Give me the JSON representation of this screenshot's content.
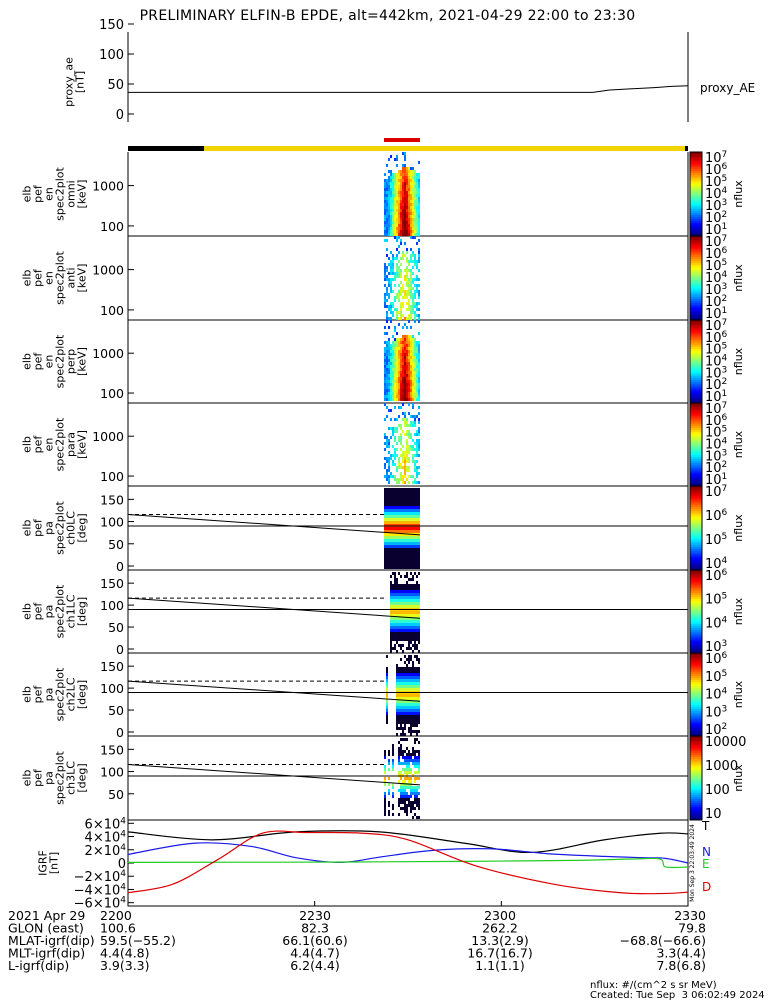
{
  "title": "PRELIMINARY ELFIN-B EPDE, alt=442km, 2021-04-29 22:00 to 23:30",
  "colors": {
    "line": "#000000",
    "black_bar": "#000000",
    "yellow_bar": "#f2d500",
    "red_bar": "#dd0000",
    "T": "#000000",
    "N": "#1a1ae6",
    "E": "#22cc22",
    "D": "#dd0000"
  },
  "chart_data": [
    {
      "type": "line",
      "ylabel_lines": [
        "proxy_ae",
        "[nT]"
      ],
      "ylim": [
        0,
        150
      ],
      "yticks": [
        "0",
        "50",
        "100",
        "150"
      ],
      "series": [
        {
          "name": "proxy_AE",
          "x": [
            0,
            0.5,
            0.52,
            0.55,
            0.58,
            0.62,
            0.7,
            0.8,
            0.9,
            1
          ],
          "values": [
            36,
            36,
            36,
            36,
            36,
            36,
            36,
            36,
            36,
            36
          ]
        }
      ],
      "series_x_last": [
        55,
        62,
        66,
        72,
        79,
        87,
        90
      ],
      "series_y_last": [
        36,
        36,
        40,
        42,
        44,
        46,
        47
      ]
    },
    {
      "type": "heatmap",
      "ylabel_lines": [
        "elb",
        "pef",
        "en",
        "spec2plot",
        "omni",
        "[keV]"
      ],
      "yticks": [
        "100",
        "1000"
      ],
      "colorbar_ticks": [
        "10^7",
        "10^6",
        "10^5",
        "10^4",
        "10^3",
        "10^2",
        "10^1"
      ],
      "colorbar_label": "nflux"
    },
    {
      "type": "heatmap",
      "ylabel_lines": [
        "elb",
        "pef",
        "en",
        "spec2plot",
        "anti",
        "[keV]"
      ],
      "yticks": [
        "100",
        "1000"
      ],
      "colorbar_ticks": [
        "10^7",
        "10^6",
        "10^5",
        "10^4",
        "10^3",
        "10^2",
        "10^1"
      ],
      "colorbar_label": "nflux"
    },
    {
      "type": "heatmap",
      "ylabel_lines": [
        "elb",
        "pef",
        "en",
        "spec2plot",
        "perp",
        "[keV]"
      ],
      "yticks": [
        "100",
        "1000"
      ],
      "colorbar_ticks": [
        "10^7",
        "10^6",
        "10^5",
        "10^4",
        "10^3",
        "10^2",
        "10^1"
      ],
      "colorbar_label": "nflux"
    },
    {
      "type": "heatmap",
      "ylabel_lines": [
        "elb",
        "pef",
        "en",
        "spec2plot",
        "para",
        "[keV]"
      ],
      "yticks": [
        "100",
        "1000"
      ],
      "colorbar_ticks": [
        "10^7",
        "10^6",
        "10^5",
        "10^4",
        "10^3",
        "10^2",
        "10^1"
      ],
      "colorbar_label": "nflux"
    },
    {
      "type": "heatmap",
      "ylabel_lines": [
        "elb",
        "pef",
        "pa",
        "spec2plot",
        "ch0LC",
        "[deg]"
      ],
      "ylim": [
        0,
        180
      ],
      "yticks": [
        "0",
        "50",
        "100",
        "150"
      ],
      "colorbar_ticks": [
        "10^7",
        "10^6",
        "10^5",
        "10^4"
      ],
      "colorbar_label": "nflux"
    },
    {
      "type": "heatmap",
      "ylabel_lines": [
        "elb",
        "pef",
        "pa",
        "spec2plot",
        "ch1LC",
        "[deg]"
      ],
      "ylim": [
        0,
        180
      ],
      "yticks": [
        "0",
        "50",
        "100",
        "150"
      ],
      "colorbar_ticks": [
        "10^6",
        "10^5",
        "10^4",
        "10^3"
      ],
      "colorbar_label": "nflux"
    },
    {
      "type": "heatmap",
      "ylabel_lines": [
        "elb",
        "pef",
        "pa",
        "spec2plot",
        "ch2LC",
        "[deg]"
      ],
      "ylim": [
        0,
        180
      ],
      "yticks": [
        "0",
        "50",
        "100",
        "150"
      ],
      "colorbar_ticks": [
        "10^6",
        "10^5",
        "10^4",
        "10^3",
        "10^2"
      ],
      "colorbar_label": "nflux"
    },
    {
      "type": "heatmap",
      "ylabel_lines": [
        "elb",
        "pef",
        "pa",
        "spec2plot",
        "ch3LC",
        "[deg]"
      ],
      "ylim": [
        0,
        180
      ],
      "yticks": [
        "50",
        "100",
        "150"
      ],
      "colorbar_ticks": [
        "10000",
        "1000",
        "100",
        "10"
      ],
      "colorbar_label": "nflux"
    },
    {
      "type": "line",
      "ylabel_lines": [
        "IGRF",
        "[nT]"
      ],
      "ylim": [
        -65000,
        65000
      ],
      "yticks": [
        "6×10^4",
        "4×10^4",
        "2×10^4",
        "0",
        "−2×10^4",
        "−4×10^4",
        "−6×10^4"
      ],
      "x_ticks": [
        "2200",
        "2230",
        "2300",
        "2330"
      ],
      "series": [
        {
          "name": "T",
          "x": [
            0,
            0.15,
            0.3,
            0.45,
            0.6,
            0.72,
            0.85,
            0.95,
            1
          ],
          "values": [
            47000,
            35000,
            47000,
            47000,
            30000,
            16000,
            35000,
            45000,
            44000
          ]
        },
        {
          "name": "N",
          "x": [
            0,
            0.12,
            0.22,
            0.3,
            0.38,
            0.45,
            0.52,
            0.58,
            0.66,
            0.75,
            0.85,
            0.92,
            0.96,
            1
          ],
          "values": [
            13000,
            30000,
            25000,
            8000,
            1000,
            9000,
            17000,
            21000,
            21000,
            14000,
            10000,
            8000,
            7000,
            0
          ]
        },
        {
          "name": "E",
          "x": [
            0,
            0.2,
            0.4,
            0.6,
            0.8,
            0.9,
            0.95,
            0.96,
            1
          ],
          "values": [
            1000,
            1200,
            1500,
            2500,
            4000,
            6000,
            6000,
            -6000,
            -6000
          ]
        },
        {
          "name": "D",
          "x": [
            0,
            0.08,
            0.16,
            0.24,
            0.32,
            0.42,
            0.5,
            0.62,
            0.76,
            0.88,
            0.96,
            1
          ],
          "values": [
            -45000,
            -32000,
            5000,
            45000,
            46000,
            45000,
            35000,
            -4000,
            -32000,
            -45000,
            -46000,
            -44000
          ]
        }
      ]
    }
  ],
  "ephemeris": {
    "rows": [
      {
        "label": "2021 Apr 29",
        "values": [
          "2200",
          "2230",
          "2300",
          "2330"
        ]
      },
      {
        "label": "GLON (east)",
        "values": [
          "100.6",
          "82.3",
          "262.2",
          "79.8"
        ]
      },
      {
        "label": "MLAT-igrf(dip)",
        "values": [
          "59.5(−55.2)",
          "66.1(60.6)",
          "13.3(2.9)",
          "−68.8(−66.6)"
        ]
      },
      {
        "label": "MLT-igrf(dip)",
        "values": [
          "4.4(4.8)",
          "4.4(4.7)",
          "16.7(16.7)",
          "3.3(4.4)"
        ]
      },
      {
        "label": "L-igrf(dip)",
        "values": [
          "3.9(3.3)",
          "6.2(4.4)",
          "1.1(1.1)",
          "7.8(6.8)"
        ]
      }
    ]
  },
  "footer": {
    "units": "nflux: #/(cm^2 s sr MeV)",
    "created": "Created: Tue Sep  3 06:02:49 2024",
    "side_stamp": "Mon Sep  3 22:03:49 2024"
  }
}
